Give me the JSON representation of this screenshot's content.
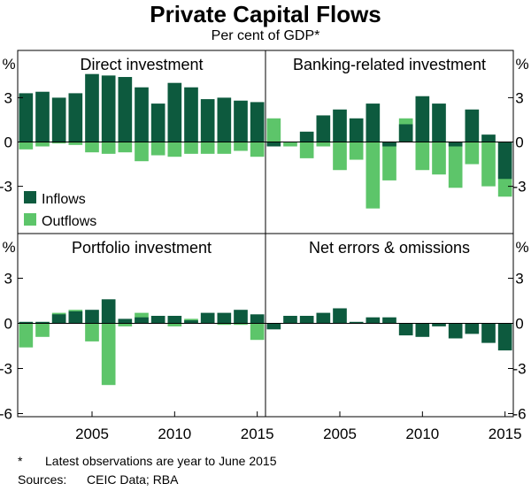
{
  "title": "Private Capital Flows",
  "subtitle": "Per cent of GDP*",
  "unit_label": "%",
  "footnote": {
    "marker": "*",
    "text": "Latest observations are year to June 2015"
  },
  "sources": {
    "label": "Sources:",
    "text": "CEIC Data; RBA"
  },
  "legend": {
    "inflows": "Inflows",
    "outflows": "Outflows"
  },
  "colors": {
    "inflows": "#0d5a3e",
    "outflows": "#5dc56a"
  },
  "chart_data": [
    {
      "type": "bar",
      "title": "Direct investment",
      "categories": [
        2001,
        2002,
        2003,
        2004,
        2005,
        2006,
        2007,
        2008,
        2009,
        2010,
        2011,
        2012,
        2013,
        2014,
        2015
      ],
      "ylim": [
        -6,
        6
      ],
      "yticks": [
        -3,
        0,
        3
      ],
      "xticks": [
        2005,
        2010,
        2015
      ],
      "series": [
        {
          "name": "Inflows",
          "values": [
            3.3,
            3.4,
            3.0,
            3.3,
            4.6,
            4.5,
            4.4,
            3.7,
            2.6,
            4.0,
            3.7,
            2.9,
            3.0,
            2.8,
            2.7
          ]
        },
        {
          "name": "Outflows",
          "values": [
            -0.5,
            -0.3,
            -0.1,
            -0.2,
            -0.7,
            -0.8,
            -0.7,
            -1.3,
            -0.9,
            -1.0,
            -0.8,
            -0.8,
            -0.8,
            -0.6,
            -1.0
          ]
        }
      ]
    },
    {
      "type": "bar",
      "title": "Banking-related investment",
      "categories": [
        2001,
        2002,
        2003,
        2004,
        2005,
        2006,
        2007,
        2008,
        2009,
        2010,
        2011,
        2012,
        2013,
        2014,
        2015
      ],
      "ylim": [
        -6,
        6
      ],
      "yticks": [
        -3,
        0,
        3
      ],
      "xticks": [
        2005,
        2010,
        2015
      ],
      "series": [
        {
          "name": "Inflows",
          "values": [
            -0.3,
            0.0,
            0.7,
            1.8,
            2.2,
            1.6,
            2.6,
            -0.3,
            1.2,
            3.1,
            2.6,
            -0.3,
            2.2,
            0.5,
            -2.5
          ]
        },
        {
          "name": "Outflows",
          "values": [
            1.6,
            -0.3,
            -1.1,
            -0.3,
            -1.9,
            -1.2,
            -4.5,
            -2.6,
            1.6,
            -1.9,
            -2.2,
            -3.1,
            -1.5,
            -3.0,
            -3.7
          ]
        }
      ]
    },
    {
      "type": "bar",
      "title": "Portfolio investment",
      "categories": [
        2001,
        2002,
        2003,
        2004,
        2005,
        2006,
        2007,
        2008,
        2009,
        2010,
        2011,
        2012,
        2013,
        2014,
        2015
      ],
      "ylim": [
        -6,
        6
      ],
      "yticks": [
        -6,
        -3,
        0,
        3
      ],
      "xticks": [
        2005,
        2010,
        2015
      ],
      "series": [
        {
          "name": "Inflows",
          "values": [
            0.1,
            0.1,
            0.6,
            0.8,
            0.9,
            1.6,
            0.3,
            0.4,
            0.5,
            0.5,
            0.2,
            0.7,
            0.7,
            0.9,
            0.6
          ]
        },
        {
          "name": "Outflows",
          "values": [
            -1.6,
            -0.9,
            0.7,
            0.9,
            -1.2,
            -4.1,
            -0.2,
            0.7,
            0.0,
            -0.2,
            0.3,
            0.0,
            -0.1,
            -0.1,
            -1.1
          ]
        }
      ]
    },
    {
      "type": "bar",
      "title": "Net errors & omissions",
      "categories": [
        2001,
        2002,
        2003,
        2004,
        2005,
        2006,
        2007,
        2008,
        2009,
        2010,
        2011,
        2012,
        2013,
        2014,
        2015
      ],
      "ylim": [
        -6,
        6
      ],
      "yticks": [
        -6,
        -3,
        0,
        3
      ],
      "xticks": [
        2005,
        2010,
        2015
      ],
      "series": [
        {
          "name": "Net",
          "values": [
            -0.4,
            0.5,
            0.5,
            0.7,
            1.0,
            0.1,
            0.4,
            0.4,
            -0.8,
            -0.9,
            -0.2,
            -1.0,
            -0.7,
            -1.3,
            -1.8
          ]
        }
      ]
    }
  ]
}
